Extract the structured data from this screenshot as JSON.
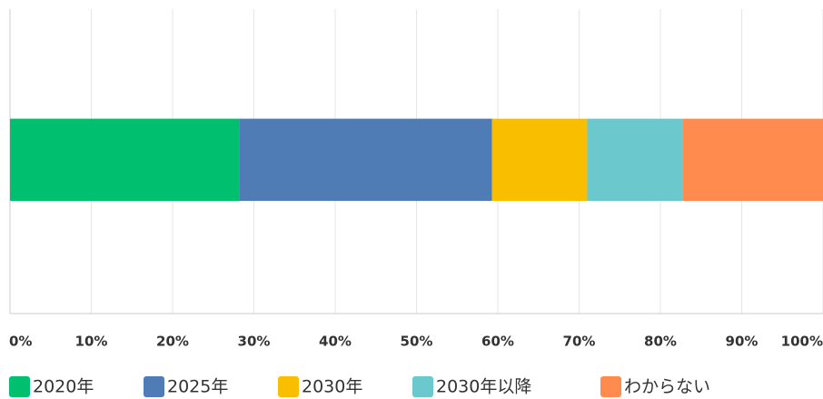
{
  "chart_data": {
    "type": "stacked_barh",
    "categories": [
      null
    ],
    "series": [
      {
        "name": "2020年",
        "color": "#00bf6f",
        "values": [
          28.2
        ]
      },
      {
        "name": "2025年",
        "color": "#507cb6",
        "values": [
          31.1
        ]
      },
      {
        "name": "2030年",
        "color": "#f9be00",
        "values": [
          11.7
        ]
      },
      {
        "name": "2030年以降",
        "color": "#6bc8cd",
        "values": [
          11.7
        ]
      },
      {
        "name": "わからない",
        "color": "#ff8b4f",
        "values": [
          17.3
        ]
      }
    ],
    "xlim": [
      0,
      100
    ],
    "xticks": [
      {
        "value": 0,
        "label": "0%"
      },
      {
        "value": 10,
        "label": "10%"
      },
      {
        "value": 20,
        "label": "20%"
      },
      {
        "value": 30,
        "label": "30%"
      },
      {
        "value": 40,
        "label": "40%"
      },
      {
        "value": 50,
        "label": "50%"
      },
      {
        "value": 60,
        "label": "60%"
      },
      {
        "value": 70,
        "label": "70%"
      },
      {
        "value": 80,
        "label": "80%"
      },
      {
        "value": 90,
        "label": "90%"
      },
      {
        "value": 100,
        "label": "100%"
      }
    ],
    "grid": true,
    "legend": "bottom"
  }
}
